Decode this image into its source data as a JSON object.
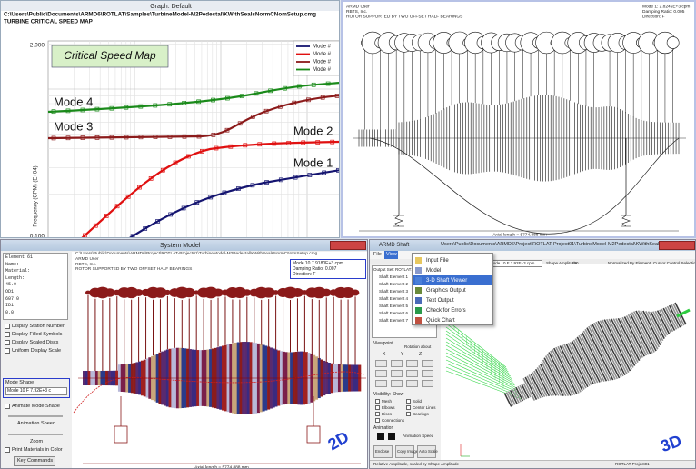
{
  "graph_window": {
    "title": "Graph: Default",
    "path": "C:\\Users\\Public\\Documents\\ARMD6\\ROTLAT\\Samples\\TurbineModel-M2Pedestal\\KWithSealsNormCNomSetup.cmg",
    "heading": "TURBINE CRITICAL SPEED MAP",
    "banner": "Critical Speed Map",
    "y_ticks": [
      "2.000",
      "0.100"
    ],
    "y_label": "Frequency (CPM) (E+04)",
    "legend": [
      "Mode #",
      "Mode #",
      "Mode #",
      "Mode #"
    ],
    "curve_labels": [
      "Mode 4",
      "Mode 3",
      "Mode 2",
      "Mode 1"
    ]
  },
  "mode_shape_plot": {
    "header_left": [
      "ARMD User",
      "RBTS, Inc.",
      "ROTOR SUPPORTED BY TWO OFFSET HALF BEARINGS"
    ],
    "header_right": [
      "Mode   1: 2.8245E+3 cpm",
      "Damping Ratio: 0.005",
      "Direction: F"
    ],
    "axial_length": "Axial length = 5774.888 mm"
  },
  "system_model": {
    "title": "System Model",
    "path": "C:\\Users\\Public\\Documents\\ARMD6\\Project\\ROTLAT-Project01\\TurbineModel-M2Pedestal\\KWithSealsNormCNomSetup.cmg",
    "header_left": [
      "ARMD User",
      "RBTS, Inc.",
      "ROTOR SUPPORTED BY TWO OFFSET HALF BEARINGS"
    ],
    "info": [
      "Mode  10   7.9180E+3 cpm",
      "Damping Ratio: 0.007",
      "Direction: F"
    ],
    "element_list": [
      "Element 61",
      "Name:",
      "Material:",
      "Length:",
      "45.0",
      "OD1:",
      "607.0",
      "ID1:",
      "0.0"
    ],
    "checkboxes": [
      "Display Station Number",
      "Display Filled Symbols",
      "Display Scaled Discs",
      "Uniform Display Scale"
    ],
    "mode_shape_label": "Mode Shape",
    "mode_shape_value": "Mode 10 F 7.92E+3 c",
    "animate": "Animate Mode Shape",
    "animation_speed": "Animation Speed",
    "zoom": "Zoom",
    "print_colors": "Print Materials in Color",
    "button": "Key Commands",
    "tag": "2D",
    "axial_length": "Axial length = 5774.888 mm"
  },
  "shaft_window": {
    "title": "ARMD Shaft",
    "menu": [
      "File",
      "View"
    ],
    "path": "Users\\Public\\Documents\\ARMD6\\Project\\ROTLAT-Project01\\TurbineModel-M2Pedestal\\KWithSealsNormCNomSetup.cdc",
    "dropdown": [
      "Input File",
      "Model",
      "3-D Shaft Viewer",
      "Graphics Output",
      "Text Output",
      "Check for Errors",
      "Quick Chart"
    ],
    "toolbar": [
      "Mode 10 F 7.92E+3 cpm",
      "Shape Amplitude",
      "100",
      "Normalized By Element",
      "Cursor Control Selection"
    ],
    "tree": [
      "Output Set: ROTLAT1",
      "Shaft Element 1",
      "Shaft Element 2",
      "Shaft Element 3",
      "Shaft Element 4",
      "Shaft Element 5",
      "Shaft Element 6",
      "Shaft Element 7"
    ],
    "viewpoint": "Viewpoint",
    "rotation": "Rotation about",
    "axes": [
      "X",
      "Y",
      "Z"
    ],
    "visibility": "Visibility: Show",
    "show_options": [
      "Mesh",
      "Solid",
      "Elbows",
      "Center Lines",
      "Discs",
      "Bearings",
      "Connections"
    ],
    "animation": "Animation",
    "animation_speed": "Animation Speed",
    "buttons": [
      "Enclose",
      "Copy Image",
      "Auto Scale"
    ],
    "tag": "3D",
    "status": [
      "Relative Amplitude, scaled by Shape Amplitude",
      "ROTLAT-Project01"
    ]
  }
}
